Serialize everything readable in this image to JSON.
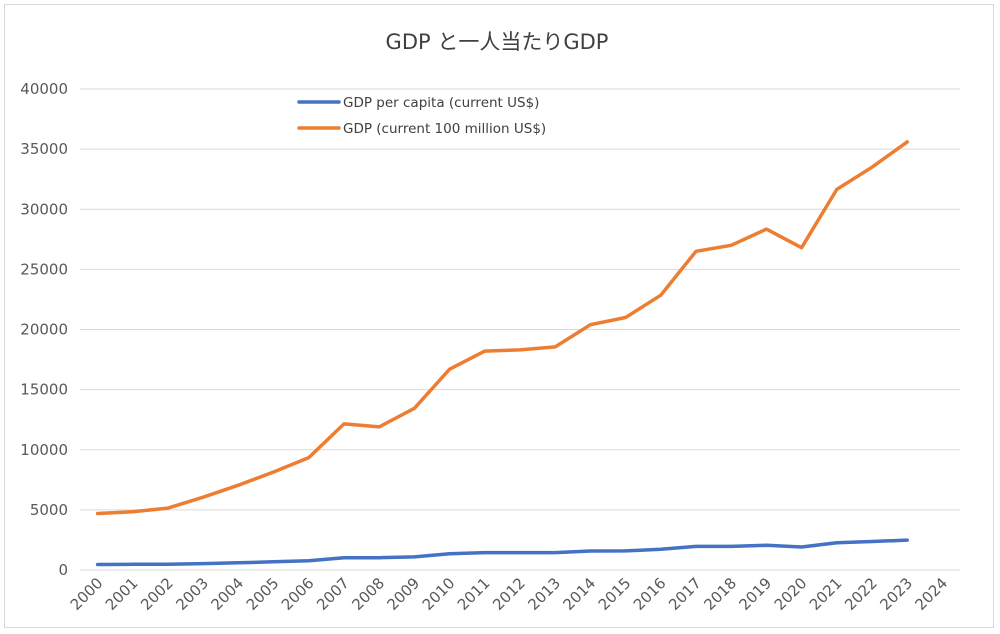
{
  "chart_data": {
    "type": "line",
    "title": "GDP と一人当たりGDP",
    "xlabel": "",
    "ylabel": "",
    "ylim": [
      0,
      40000
    ],
    "yticks": [
      0,
      5000,
      10000,
      15000,
      20000,
      25000,
      30000,
      35000,
      40000
    ],
    "categories": [
      "2000",
      "2001",
      "2002",
      "2003",
      "2004",
      "2005",
      "2006",
      "2007",
      "2008",
      "2009",
      "2010",
      "2011",
      "2012",
      "2013",
      "2014",
      "2015",
      "2016",
      "2017",
      "2018",
      "2019",
      "2020",
      "2021",
      "2022",
      "2023",
      "2024"
    ],
    "grid": true,
    "legend_position": "top-left",
    "series": [
      {
        "name": "GDP per capita (current US$)",
        "color": "#4472c4",
        "values": [
          460,
          470,
          470,
          530,
          600,
          680,
          770,
          1020,
          1020,
          1090,
          1350,
          1450,
          1450,
          1450,
          1580,
          1590,
          1730,
          1960,
          1960,
          2050,
          1910,
          2260,
          2370,
          2490,
          null
        ]
      },
      {
        "name": "GDP (current 100 million US$)",
        "color": "#ed7d31",
        "values": [
          4700,
          4850,
          5150,
          6050,
          7050,
          8150,
          9350,
          12150,
          11900,
          13450,
          16700,
          18200,
          18300,
          18550,
          20400,
          21000,
          22850,
          26500,
          27000,
          28350,
          26800,
          31650,
          33500,
          35600,
          null
        ]
      }
    ]
  }
}
